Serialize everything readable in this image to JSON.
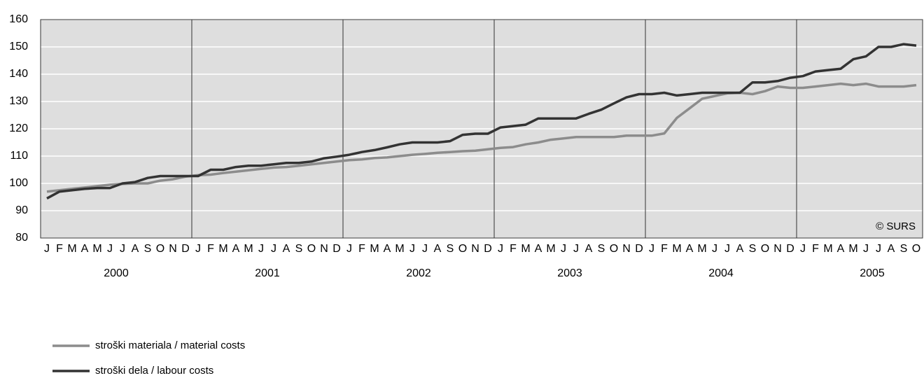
{
  "chart_data": {
    "type": "line",
    "categories": [
      "J",
      "F",
      "M",
      "A",
      "M",
      "J",
      "J",
      "A",
      "S",
      "O",
      "N",
      "D",
      "J",
      "F",
      "M",
      "A",
      "M",
      "J",
      "J",
      "A",
      "S",
      "O",
      "N",
      "D",
      "J",
      "F",
      "M",
      "A",
      "M",
      "J",
      "J",
      "A",
      "S",
      "O",
      "N",
      "D",
      "J",
      "F",
      "M",
      "A",
      "M",
      "J",
      "J",
      "A",
      "S",
      "O",
      "N",
      "D",
      "J",
      "F",
      "M",
      "A",
      "M",
      "J",
      "J",
      "A",
      "S",
      "O",
      "N",
      "D",
      "J",
      "F",
      "M",
      "A",
      "M",
      "J",
      "J",
      "A",
      "S",
      "O"
    ],
    "years": [
      "2000",
      "2001",
      "2002",
      "2003",
      "2004",
      "2005"
    ],
    "series": [
      {
        "name": "stroški materiala / material costs",
        "color": "#8c8c8c",
        "values": [
          97,
          97.5,
          98,
          98.5,
          99,
          99.5,
          99.8,
          100,
          100,
          101,
          101.5,
          102.5,
          103,
          103.2,
          103.8,
          104.3,
          104.8,
          105.3,
          105.8,
          106,
          106.5,
          107,
          107.5,
          108,
          108.5,
          108.8,
          109.3,
          109.5,
          110,
          110.5,
          110.8,
          111.2,
          111.5,
          111.8,
          112,
          112.5,
          113,
          113.3,
          114.3,
          115,
          116,
          116.5,
          117,
          117,
          117,
          117,
          117.5,
          117.5,
          117.5,
          118.3,
          124,
          127.5,
          131,
          132,
          133,
          133.2,
          132.7,
          133.8,
          135.5,
          135,
          135,
          135.5,
          136,
          136.5,
          136,
          136.5,
          135.5,
          135.5,
          135.5,
          136
        ]
      },
      {
        "name": "stroški dela / labour costs",
        "color": "#333333",
        "values": [
          94.5,
          97,
          97.5,
          98,
          98.3,
          98.3,
          100,
          100.5,
          102,
          102.7,
          102.7,
          102.7,
          102.7,
          105,
          105,
          106,
          106.5,
          106.5,
          107,
          107.5,
          107.5,
          108,
          109.2,
          109.8,
          110.5,
          111.5,
          112.2,
          113.2,
          114.3,
          115,
          115,
          115,
          115.5,
          117.8,
          118.2,
          118.2,
          120.5,
          121,
          121.5,
          123.8,
          123.8,
          123.8,
          123.8,
          125.5,
          127,
          129.3,
          131.5,
          132.7,
          132.7,
          133.2,
          132.2,
          132.7,
          133.2,
          133.2,
          133.2,
          133.2,
          137,
          137,
          137.5,
          138.7,
          139.3,
          141,
          141.5,
          142,
          145.5,
          146.5,
          150,
          150,
          151,
          150.5
        ]
      }
    ],
    "ylim": [
      80,
      160
    ],
    "yticks": [
      80,
      90,
      100,
      110,
      120,
      130,
      140,
      150,
      160
    ],
    "grid": true,
    "annotation": "© SURS",
    "legend": "bottom-left"
  }
}
